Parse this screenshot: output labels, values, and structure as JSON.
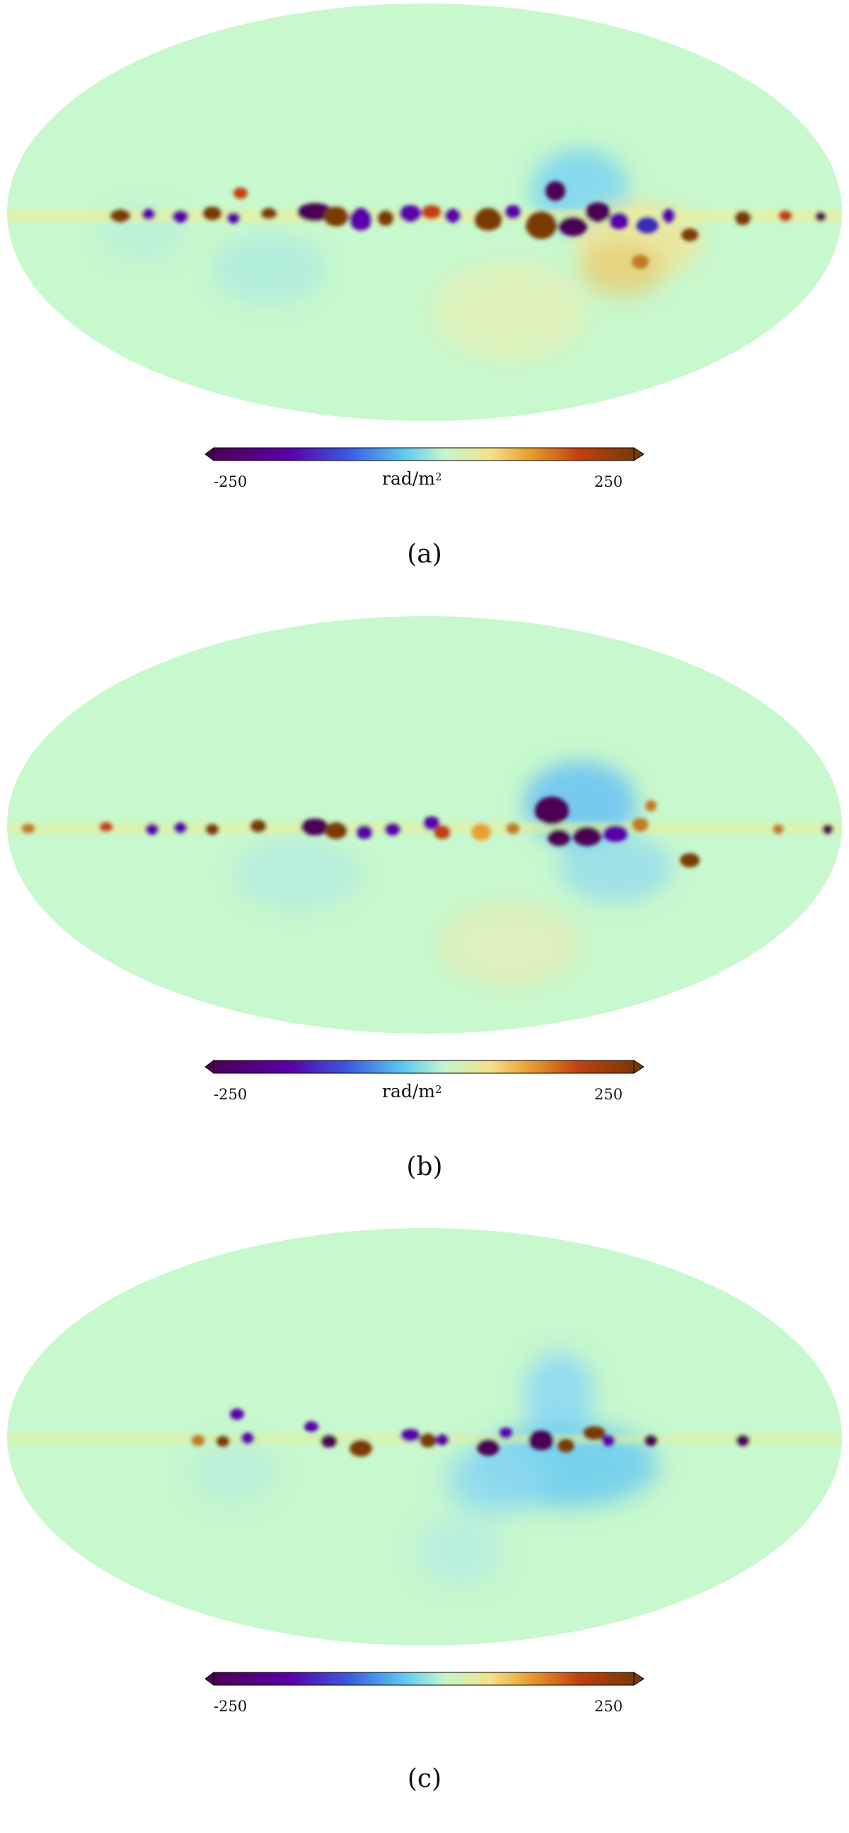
{
  "colormap": {
    "name": "turbo-like diverging",
    "stops": [
      "#4b0055",
      "#5a00a8",
      "#3a5ae0",
      "#5cc7f0",
      "#c6f5cd",
      "#f4e08a",
      "#e8a030",
      "#c04010",
      "#7a3a06"
    ],
    "background": "#c8f8cd"
  },
  "panels": [
    {
      "id": "a",
      "caption": "(a)",
      "colorbar": {
        "min_label": "-250",
        "max_label": "250",
        "unit": "rad/m",
        "unit_exp": "2"
      }
    },
    {
      "id": "b",
      "caption": "(b)",
      "colorbar": {
        "min_label": "-250",
        "max_label": "250",
        "unit": "rad/m",
        "unit_exp": "2"
      }
    },
    {
      "id": "c",
      "caption": "(c)",
      "colorbar": {
        "min_label": "-250",
        "max_label": "250",
        "unit": "",
        "unit_exp": ""
      }
    }
  ]
}
